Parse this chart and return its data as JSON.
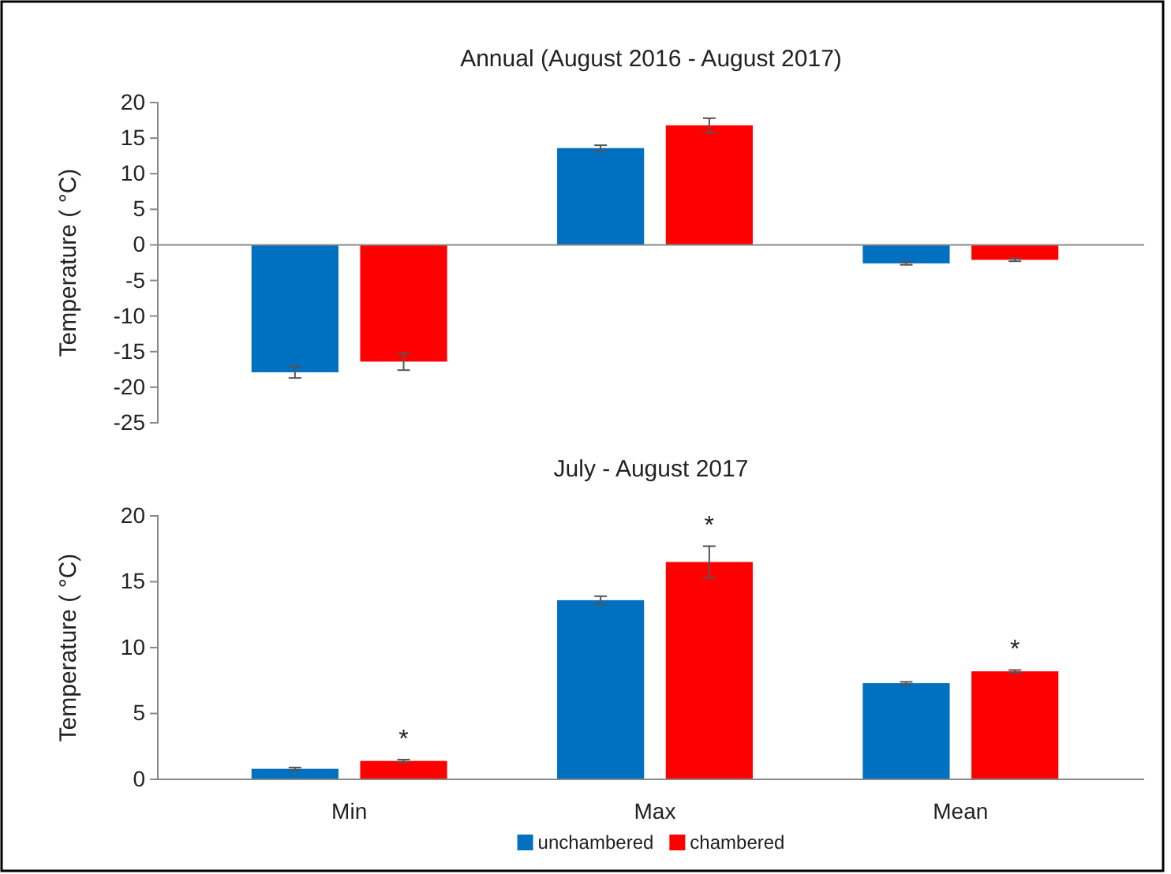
{
  "chart_data": [
    {
      "type": "bar",
      "title": "Annual (August 2016 - August 2017)",
      "ylabel": "Temperature ( °C)",
      "categories": [
        null,
        null,
        null
      ],
      "ylim": [
        -25,
        20
      ],
      "yticks": [
        -25,
        -20,
        -15,
        -10,
        -5,
        0,
        5,
        10,
        15,
        20
      ],
      "tick_labels": "y",
      "legend": false,
      "series": [
        {
          "color": "#0070c0",
          "values": [
            -17.9,
            13.6,
            -2.6
          ],
          "errors": [
            0.8,
            0.4,
            0.2
          ]
        },
        {
          "color": "#ff0000",
          "values": [
            -16.4,
            16.8,
            -2.1
          ],
          "errors": [
            1.2,
            1.0,
            0.2
          ]
        }
      ]
    },
    {
      "type": "bar",
      "title": "July - August 2017",
      "ylabel": "Temperature ( °C)",
      "categories": [
        "Min",
        "Max",
        "Mean"
      ],
      "ylim": [
        0,
        20
      ],
      "yticks": [
        0,
        5,
        10,
        15,
        20
      ],
      "legend": "bottom",
      "series": [
        {
          "name": "unchambered",
          "color": "#0070c0",
          "values": [
            0.8,
            13.6,
            7.3
          ],
          "errors": [
            0.1,
            0.3,
            0.1
          ]
        },
        {
          "name": "chambered",
          "color": "#ff0000",
          "values": [
            1.4,
            16.5,
            8.2
          ],
          "errors": [
            0.1,
            1.2,
            0.1
          ]
        }
      ],
      "annotations": [
        "*",
        "*",
        "*"
      ]
    }
  ]
}
